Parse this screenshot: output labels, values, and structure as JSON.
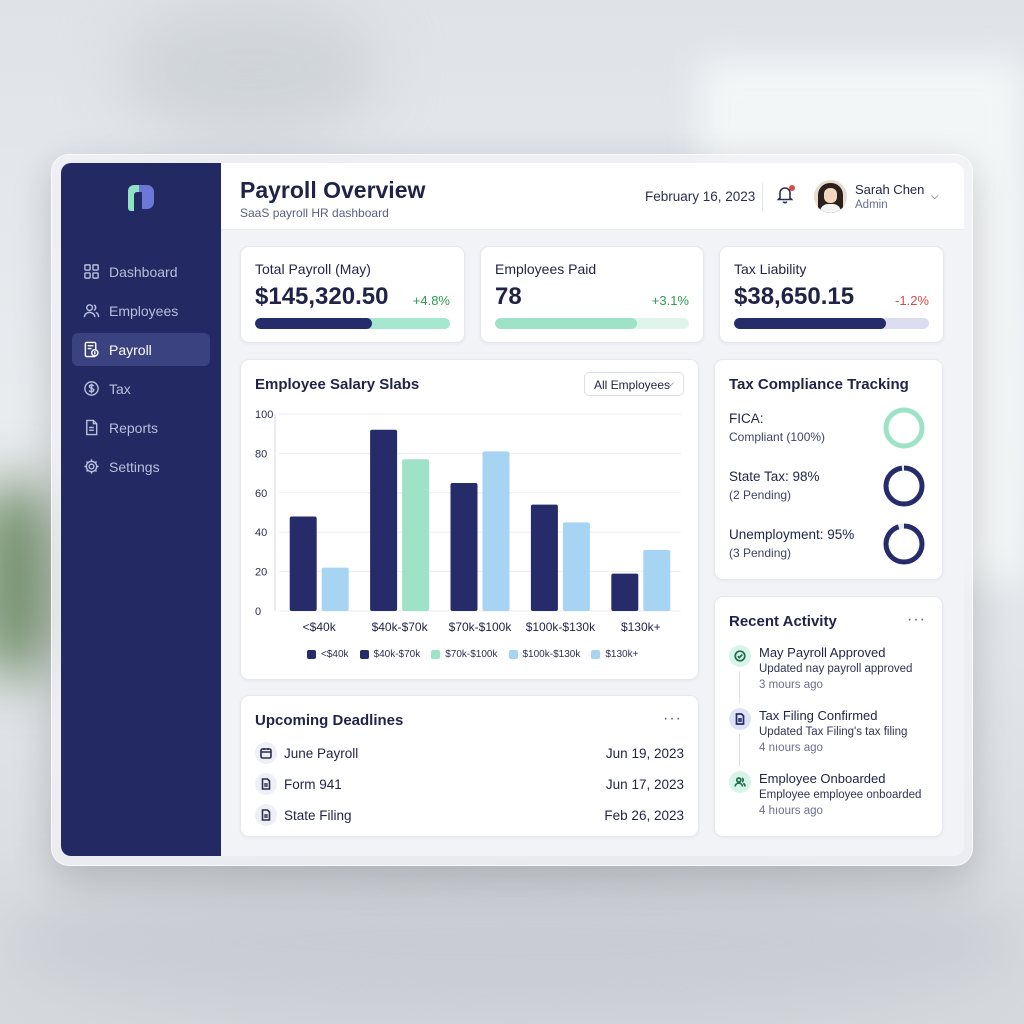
{
  "colors": {
    "sidebar": "#232a63",
    "navy": "#262b69",
    "mint": "#9ee3c8",
    "sky": "#a8d4f4",
    "positive": "#2e9a52",
    "negative": "#d24a4a"
  },
  "sidebar": {
    "logo": "brand-logo",
    "items": [
      {
        "label": "Dashboard",
        "icon": "grid-icon",
        "active": false
      },
      {
        "label": "Employees",
        "icon": "users-icon",
        "active": false
      },
      {
        "label": "Payroll",
        "icon": "payroll-icon",
        "active": true
      },
      {
        "label": "Tax",
        "icon": "dollar-circle-icon",
        "active": false
      },
      {
        "label": "Reports",
        "icon": "document-icon",
        "active": false
      },
      {
        "label": "Settings",
        "icon": "gear-icon",
        "active": false
      }
    ]
  },
  "header": {
    "title": "Payroll Overview",
    "subtitle": "SaaS payroll HR dashboard",
    "date": "February 16, 2023",
    "notification_icon": "bell-icon",
    "user": {
      "name": "Sarah Chen",
      "role": "Admin"
    }
  },
  "kpis": [
    {
      "label": "Total Payroll (May)",
      "value": "$145,320.50",
      "delta": "+4.8%",
      "trend": "positive",
      "progress": 0.6
    },
    {
      "label": "Employees Paid",
      "value": "78",
      "delta": "+3.1%",
      "trend": "positive",
      "progress": 0.73
    },
    {
      "label": "Tax Liability",
      "value": "$38,650.15",
      "delta": "-1.2%",
      "trend": "negative",
      "progress": 0.78
    }
  ],
  "salary_card": {
    "title": "Employee Salary Slabs",
    "filter": "All Employees"
  },
  "chart_data": {
    "type": "bar",
    "categories": [
      "<$40k",
      "$40k-$70k",
      "$70k-$100k",
      "$100k-$130k",
      "$130k+"
    ],
    "series": [
      {
        "name": "<$40k",
        "values": [
          48,
          92,
          65,
          54,
          19
        ],
        "color": "#262b69"
      },
      {
        "name": "$40k-$70k",
        "values": [
          22,
          77,
          81,
          45,
          31
        ],
        "color": "#a8d4f4"
      }
    ],
    "bar_colors_second": [
      "#a8d4f4",
      "#9ee3c8",
      "#a8d4f4",
      "#a8d4f4",
      "#a8d4f4"
    ],
    "legend": [
      {
        "label": "<$40k",
        "color": "#262b69"
      },
      {
        "label": "$40k-$70k",
        "color": "#262b69"
      },
      {
        "label": "$70k-$100k",
        "color": "#9ee3c8"
      },
      {
        "label": "$100k-$130k",
        "color": "#a8d4f4"
      },
      {
        "label": "$130k+",
        "color": "#a8d4f4"
      }
    ],
    "ylim": [
      0,
      100
    ],
    "yticks": [
      "100",
      "80",
      "60",
      "40",
      "20",
      "0"
    ],
    "grid": true,
    "legend_position": "bottom"
  },
  "compliance": {
    "title": "Tax Compliance Tracking",
    "rows": [
      {
        "label": "FICA:",
        "sub": "Compliant (100%)",
        "percent": 100,
        "color": "#9ee3c8"
      },
      {
        "label": "State Tax: 98%",
        "sub": "(2 Pending)",
        "percent": 98,
        "color": "#262b69"
      },
      {
        "label": "Unemployment: 95%",
        "sub": "(3 Pending)",
        "percent": 95,
        "color": "#262b69"
      }
    ]
  },
  "deadlines": {
    "title": "Upcoming Deadlines",
    "menu": "···",
    "items": [
      {
        "name": "June Payroll",
        "date": "Jun 19, 2023",
        "icon": "calendar-icon"
      },
      {
        "name": "Form 941",
        "date": "Jun 17, 2023",
        "icon": "file-icon"
      },
      {
        "name": "State Filing",
        "date": "Feb 26, 2023",
        "icon": "file-icon"
      }
    ]
  },
  "activity": {
    "title": "Recent Activity",
    "menu": "···",
    "items": [
      {
        "title": "May Payroll Approved",
        "desc": "Updated nay payroll approved",
        "time": "3 mours ago",
        "icon": "check-circle-icon"
      },
      {
        "title": "Tax Filing Confirmed",
        "desc": "Updated Tax Filing's tax filing",
        "time": "4 nıours ago",
        "icon": "document-icon"
      },
      {
        "title": "Employee Onboarded",
        "desc": "Employee employee onboarded",
        "time": "4 hıours ago",
        "icon": "users-icon"
      }
    ]
  }
}
